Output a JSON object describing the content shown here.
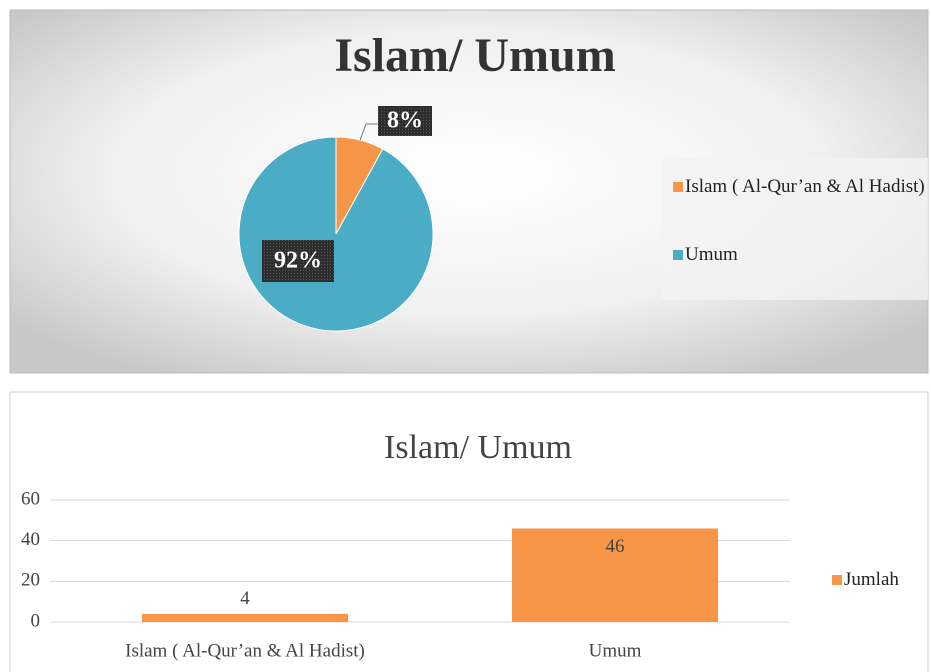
{
  "chart_data": [
    {
      "type": "pie",
      "title": "Islam/ Umum",
      "categories": [
        "Islam ( Al-Qur’an & Al Hadist)",
        "Umum"
      ],
      "values": [
        8,
        92
      ],
      "value_labels": [
        "8%",
        "92%"
      ],
      "colors": [
        "#f79646",
        "#4bacc6"
      ],
      "legend": "right"
    },
    {
      "type": "bar",
      "title": "Islam/ Umum",
      "categories": [
        "Islam ( Al-Qur’an & Al Hadist)",
        "Umum"
      ],
      "series": [
        {
          "name": "Jumlah",
          "color": "#f79646",
          "values": [
            4,
            46
          ]
        }
      ],
      "ylim": [
        0,
        60
      ],
      "yticks": [
        0,
        20,
        40,
        60
      ],
      "grid": true,
      "legend": "right"
    }
  ]
}
